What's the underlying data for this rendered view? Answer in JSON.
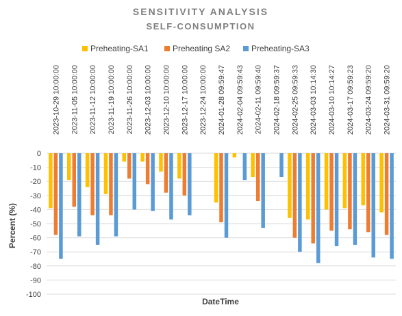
{
  "chart_data": {
    "type": "bar",
    "title": "SENSITIVITY ANALYSIS",
    "subtitle": "SELF-CONSUMPTION",
    "xlabel": "DateTime",
    "ylabel": "Percent (%)",
    "ylim": [
      -100,
      0
    ],
    "yticks": [
      0,
      -10,
      -20,
      -30,
      -40,
      -50,
      -60,
      -70,
      -80,
      -90,
      -100
    ],
    "grid": true,
    "legend_position": "top",
    "categories": [
      "2023-10-29 10:00:00",
      "2023-11-05 10:00:00",
      "2023-11-12 10:00:00",
      "2023-11-19 10:00:00",
      "2023-11-26 10:00:00",
      "2023-12-03 10:00:00",
      "2023-12-10 10:00:00",
      "2023-12-17 10:00:00",
      "2023-12-24 10:00:00",
      "2024-01-28 09:59:47",
      "2024-02-04 09:59:43",
      "2024-02-11 09:59:40",
      "2024-02-18 09:59:37",
      "2024-02-25 09:59:33",
      "2024-03-03 10:14:30",
      "2024-03-10 10:14:27",
      "2024-03-17 09:59:23",
      "2024-03-24 09:59:20",
      "2024-03-31 09:59:20"
    ],
    "series": [
      {
        "name": "Preheating-SA1",
        "color": "#ffc000",
        "values": [
          -39,
          -19,
          -24,
          -29,
          -6,
          -6,
          -13,
          -18,
          0,
          -35,
          -3,
          -17,
          0,
          -46,
          -47,
          -40,
          -39,
          -37,
          -42
        ]
      },
      {
        "name": "Preheating SA2",
        "color": "#ed7d31",
        "values": [
          -58,
          -38,
          -44,
          -44,
          -18,
          -22,
          -28,
          -30,
          0,
          -49,
          0,
          -34,
          0,
          -60,
          -64,
          -55,
          -54,
          -56,
          -58
        ]
      },
      {
        "name": "Preheating-SA3",
        "color": "#5b9bd5",
        "values": [
          -75,
          -59,
          -65,
          -59,
          -40,
          -41,
          -47,
          -44,
          0,
          -60,
          -19,
          -53,
          -17,
          -70,
          -78,
          -66,
          -65,
          -74,
          -75
        ]
      }
    ]
  }
}
